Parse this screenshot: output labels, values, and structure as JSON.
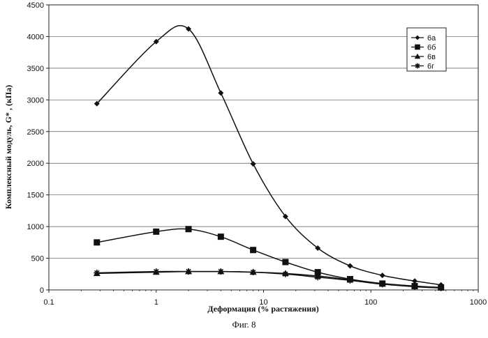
{
  "chart_data": {
    "type": "line",
    "x_scale": "log",
    "xlim": [
      0.1,
      1000
    ],
    "ylim": [
      0,
      4500
    ],
    "x_ticks": [
      "0.1",
      "1",
      "10",
      "100",
      "1000"
    ],
    "y_ticks": [
      "0",
      "500",
      "1000",
      "1500",
      "2000",
      "2500",
      "3000",
      "3500",
      "4000",
      "4500"
    ],
    "xlabel": "Деформация (% растяжения)",
    "ylabel": "Комплексный модуль, G* , (кПа)",
    "grid": "horizontal",
    "legend_position": "top-right",
    "series": [
      {
        "name": "6а",
        "marker": "diamond",
        "x": [
          0.28,
          1,
          2,
          4,
          8,
          16,
          32,
          64,
          128,
          256,
          450
        ],
        "values": [
          2940,
          3920,
          4120,
          3110,
          1990,
          1160,
          660,
          380,
          230,
          140,
          80
        ]
      },
      {
        "name": "6б",
        "marker": "square",
        "x": [
          0.28,
          1,
          2,
          4,
          8,
          16,
          32,
          64,
          128,
          256,
          450
        ],
        "values": [
          750,
          920,
          960,
          840,
          630,
          440,
          280,
          170,
          100,
          60,
          40
        ]
      },
      {
        "name": "6в",
        "marker": "triangle",
        "x": [
          0.28,
          1,
          2,
          4,
          8,
          16,
          32,
          64,
          128,
          256,
          450
        ],
        "values": [
          260,
          280,
          290,
          290,
          280,
          260,
          220,
          160,
          100,
          60,
          30
        ]
      },
      {
        "name": "6г",
        "marker": "star",
        "x": [
          0.28,
          1,
          2,
          4,
          8,
          16,
          32,
          64,
          128,
          256,
          450
        ],
        "values": [
          270,
          290,
          290,
          290,
          280,
          250,
          200,
          150,
          90,
          50,
          30
        ]
      }
    ]
  },
  "caption": "Фиг. 8"
}
